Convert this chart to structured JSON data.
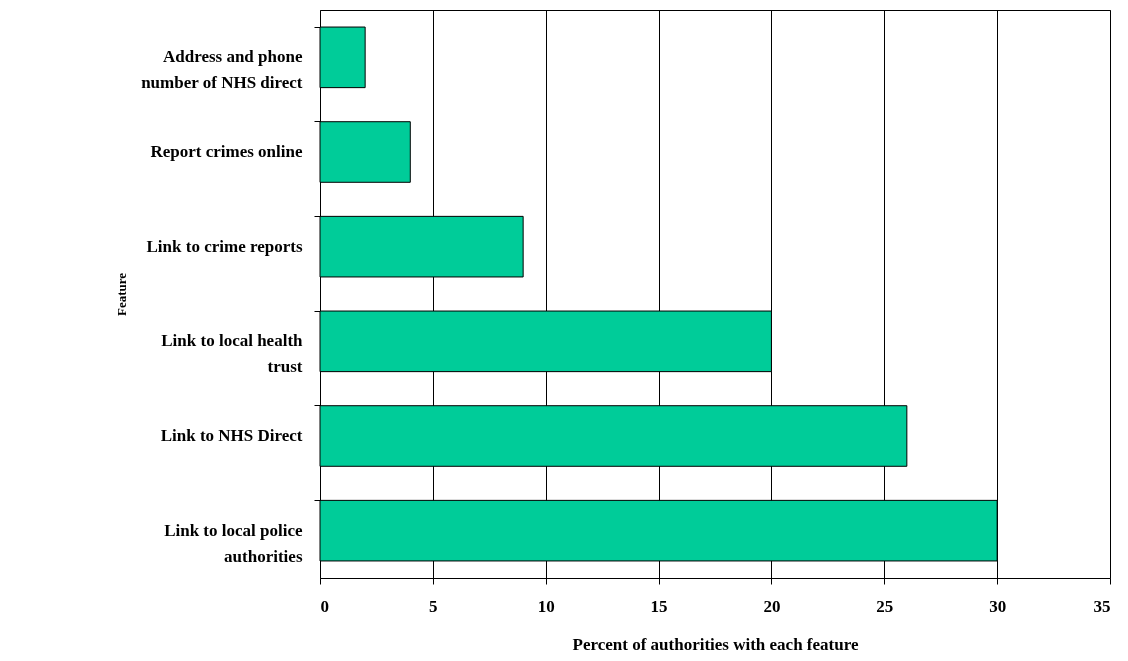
{
  "chart_data": {
    "type": "bar",
    "orientation": "horizontal",
    "xlabel": "Percent of authorities with each feature",
    "ylabel": "Feature",
    "categories": [
      "Address and phone number of NHS direct",
      "Report crimes online",
      "Link to crime reports",
      "Link to local health trust",
      "Link to NHS Direct",
      "Link to local police authorities"
    ],
    "values": [
      2,
      4,
      9,
      20,
      26,
      30
    ],
    "color": "#00cc99",
    "xlim": [
      0,
      35
    ],
    "xticks": [
      0,
      5,
      10,
      15,
      20,
      25,
      30,
      35
    ],
    "grid": "x"
  }
}
